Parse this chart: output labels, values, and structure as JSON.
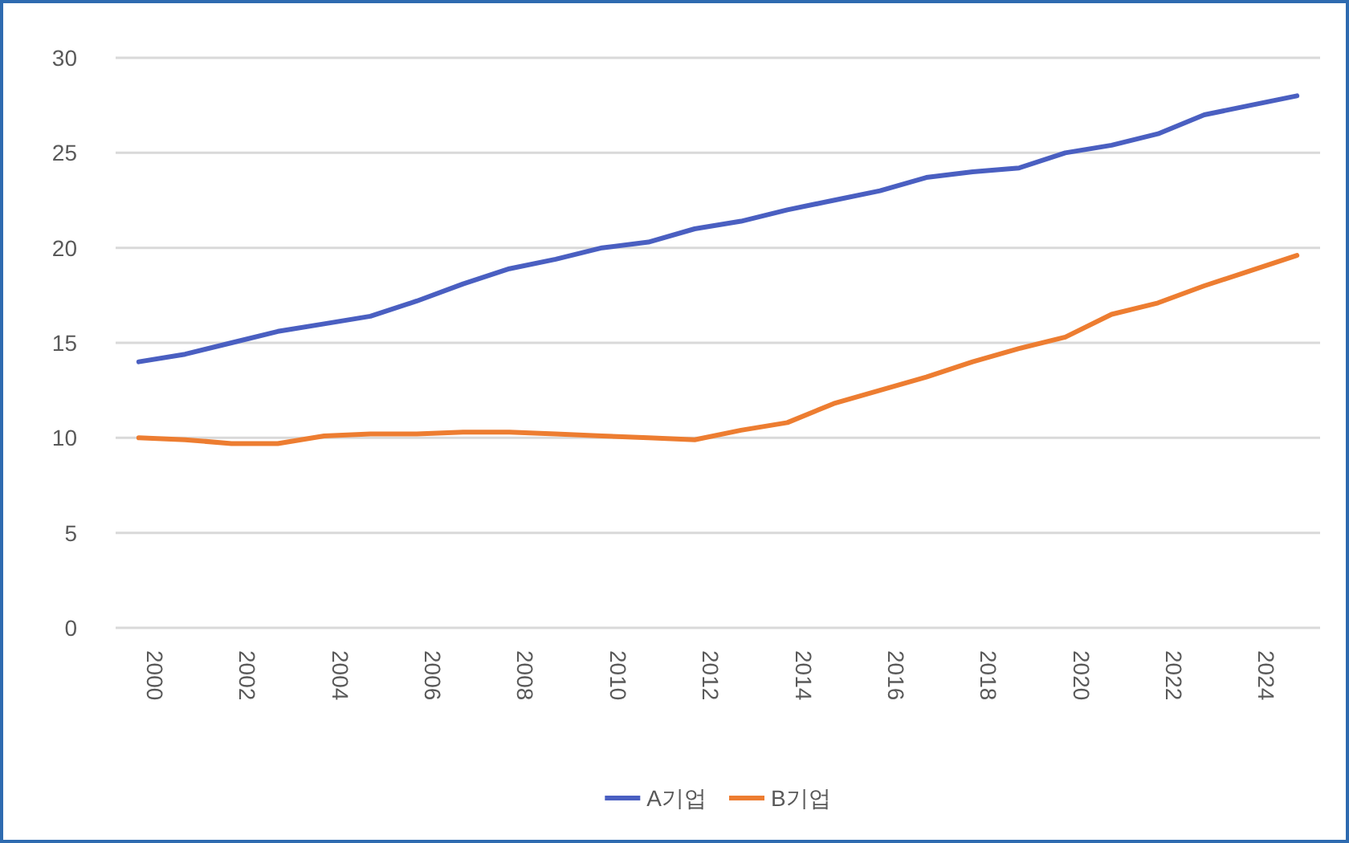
{
  "chart_data": {
    "type": "line",
    "categories": [
      "2000",
      null,
      "2002",
      null,
      "2004",
      null,
      "2006",
      null,
      "2008",
      null,
      "2010",
      null,
      "2012",
      null,
      "2014",
      null,
      "2016",
      null,
      "2018",
      null,
      "2020",
      null,
      "2022",
      null,
      "2024",
      null
    ],
    "series": [
      {
        "name": "A기업",
        "color": "#4a5fc1",
        "values": [
          14,
          14.4,
          15,
          15.6,
          16,
          16.4,
          17.2,
          18.1,
          18.9,
          19.4,
          20,
          20.3,
          21,
          21.4,
          22,
          22.5,
          23,
          23.7,
          24,
          24.2,
          25,
          25.4,
          26,
          27,
          27.5,
          28
        ]
      },
      {
        "name": "B기업",
        "color": "#ed7d31",
        "values": [
          10,
          9.9,
          9.7,
          9.7,
          10.1,
          10.2,
          10.2,
          10.3,
          10.3,
          10.2,
          10.1,
          10,
          9.9,
          10.4,
          10.8,
          11.8,
          12.5,
          13.2,
          14,
          14.7,
          15.3,
          16.5,
          17.1,
          18,
          18.8,
          19.6
        ]
      }
    ],
    "ylim": [
      0,
      30
    ],
    "yticks": [
      0,
      5,
      10,
      15,
      20,
      25,
      30
    ],
    "grid": "y",
    "legend": "bottom",
    "marker": "none",
    "line_style": "solid"
  }
}
